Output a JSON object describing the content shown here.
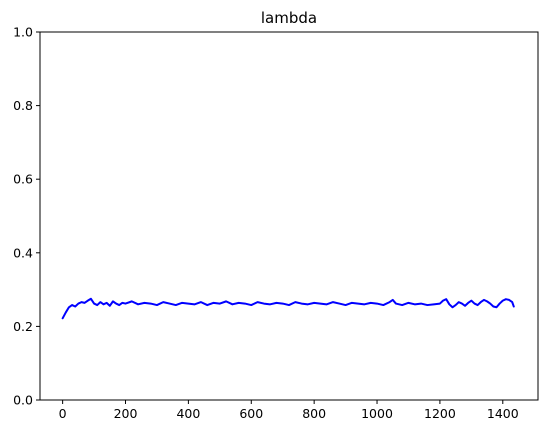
{
  "chart_data": {
    "type": "line",
    "title": "lambda",
    "xlabel": "",
    "ylabel": "",
    "xlim": [
      -72,
      1512
    ],
    "ylim": [
      0,
      1
    ],
    "grid": false,
    "x_ticks": [
      0,
      200,
      400,
      600,
      800,
      1000,
      1200,
      1400
    ],
    "x_tick_labels": [
      "0",
      "200",
      "400",
      "600",
      "800",
      "1000",
      "1200",
      "1400"
    ],
    "y_ticks": [
      0,
      0.2,
      0.4,
      0.6,
      0.8,
      1
    ],
    "y_tick_labels": [
      "0.0",
      "0.2",
      "0.4",
      "0.6",
      "0.8",
      "1.0"
    ],
    "series": [
      {
        "color": "#0000ff",
        "x": [
          0,
          10,
          20,
          30,
          40,
          50,
          60,
          70,
          80,
          90,
          100,
          110,
          120,
          130,
          140,
          150,
          160,
          170,
          180,
          190,
          200,
          220,
          240,
          260,
          280,
          300,
          320,
          340,
          360,
          380,
          400,
          420,
          440,
          460,
          480,
          500,
          520,
          540,
          560,
          580,
          600,
          620,
          640,
          660,
          680,
          700,
          720,
          740,
          760,
          780,
          800,
          820,
          840,
          860,
          880,
          900,
          920,
          940,
          960,
          980,
          1000,
          1020,
          1040,
          1050,
          1060,
          1080,
          1100,
          1120,
          1140,
          1160,
          1180,
          1200,
          1210,
          1220,
          1230,
          1240,
          1250,
          1260,
          1270,
          1280,
          1290,
          1300,
          1310,
          1320,
          1330,
          1340,
          1350,
          1360,
          1370,
          1380,
          1390,
          1400,
          1410,
          1420,
          1430,
          1435
        ],
        "y": [
          0.222,
          0.238,
          0.252,
          0.258,
          0.254,
          0.262,
          0.266,
          0.264,
          0.27,
          0.275,
          0.262,
          0.258,
          0.266,
          0.26,
          0.264,
          0.256,
          0.268,
          0.262,
          0.258,
          0.264,
          0.262,
          0.268,
          0.26,
          0.264,
          0.262,
          0.258,
          0.266,
          0.262,
          0.258,
          0.264,
          0.262,
          0.26,
          0.266,
          0.258,
          0.264,
          0.262,
          0.268,
          0.26,
          0.264,
          0.262,
          0.258,
          0.266,
          0.262,
          0.26,
          0.264,
          0.262,
          0.258,
          0.266,
          0.262,
          0.26,
          0.264,
          0.262,
          0.26,
          0.266,
          0.262,
          0.258,
          0.264,
          0.262,
          0.26,
          0.264,
          0.262,
          0.258,
          0.266,
          0.272,
          0.262,
          0.258,
          0.264,
          0.26,
          0.262,
          0.258,
          0.26,
          0.262,
          0.27,
          0.274,
          0.26,
          0.252,
          0.258,
          0.266,
          0.262,
          0.256,
          0.264,
          0.27,
          0.262,
          0.258,
          0.266,
          0.272,
          0.268,
          0.262,
          0.254,
          0.252,
          0.262,
          0.27,
          0.274,
          0.272,
          0.266,
          0.254
        ]
      }
    ]
  }
}
